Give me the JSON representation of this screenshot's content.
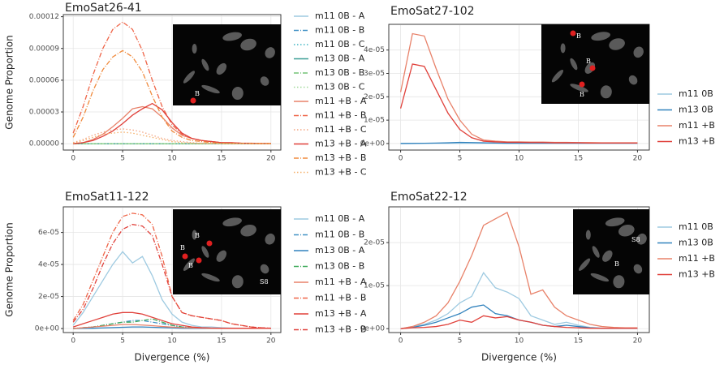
{
  "chart_data": [
    {
      "type": "line",
      "title": "EmoSat26-41",
      "y_label": "Genome Proportion",
      "x": [
        0,
        1,
        2,
        3,
        4,
        5,
        6,
        7,
        8,
        9,
        10,
        11,
        12,
        13,
        14,
        15,
        16,
        17,
        18,
        19,
        20
      ],
      "xlim": [
        -1,
        21
      ],
      "xticks": [
        0,
        5,
        10,
        15,
        20
      ],
      "ylim": [
        -6e-06,
        0.000122
      ],
      "yticks": [
        {
          "value": 0,
          "label": "0.00000"
        },
        {
          "value": 3e-05,
          "label": "0.00003"
        },
        {
          "value": 6e-05,
          "label": "0.00006"
        },
        {
          "value": 9e-05,
          "label": "0.00009"
        },
        {
          "value": 0.00012,
          "label": "0.00012"
        }
      ],
      "grid": true,
      "inset_labels": [
        "B"
      ],
      "series": [
        {
          "name": "m11 0B - A",
          "color": "#9ecae1",
          "dash": "solid",
          "values": [
            0,
            0,
            0,
            0,
            0,
            0,
            0,
            0,
            0,
            0,
            0,
            0,
            0,
            0,
            0,
            0,
            0,
            0,
            0,
            0,
            0
          ]
        },
        {
          "name": "m11 0B - B",
          "color": "#4292c6",
          "dash": "dashdot",
          "values": [
            0,
            0,
            0,
            0,
            0,
            0,
            0,
            0,
            0,
            0,
            0,
            0,
            0,
            0,
            0,
            0,
            0,
            0,
            0,
            0,
            0
          ]
        },
        {
          "name": "m11 0B - C",
          "color": "#41b6c4",
          "dash": "dotted",
          "values": [
            0,
            0,
            0,
            0,
            0,
            0,
            0,
            0,
            0,
            0,
            0,
            0,
            0,
            0,
            0,
            0,
            0,
            0,
            0,
            0,
            0
          ]
        },
        {
          "name": "m13 0B - A",
          "color": "#3a9e95",
          "dash": "solid",
          "values": [
            0,
            0,
            0,
            0,
            0,
            0,
            0,
            0,
            0,
            0,
            0,
            0,
            0,
            0,
            0,
            0,
            0,
            0,
            0,
            0,
            0
          ]
        },
        {
          "name": "m13 0B - B",
          "color": "#74c476",
          "dash": "dashdot",
          "values": [
            0,
            0,
            0,
            0,
            0,
            0,
            0,
            0,
            0,
            0,
            0,
            0,
            0,
            0,
            0,
            0,
            0,
            0,
            0,
            0,
            0
          ]
        },
        {
          "name": "m13 0B - C",
          "color": "#a1d99b",
          "dash": "dotted",
          "values": [
            0,
            0,
            0,
            0,
            0,
            0,
            0,
            0,
            0,
            0,
            0,
            0,
            0,
            0,
            0,
            0,
            0,
            0,
            0,
            0,
            0
          ]
        },
        {
          "name": "m11 +B - A",
          "color": "#e8826a",
          "dash": "solid",
          "values": [
            0,
            1e-06,
            4e-06,
            9e-06,
            1.6e-05,
            2.4e-05,
            3.3e-05,
            3.5e-05,
            3.3e-05,
            2.5e-05,
            1.5e-05,
            8e-06,
            5e-06,
            3e-06,
            2e-06,
            1e-06,
            1e-06,
            5e-07,
            5e-07,
            2e-07,
            2e-07
          ]
        },
        {
          "name": "m11 +B - B",
          "color": "#ef6548",
          "dash": "dashdot",
          "values": [
            1e-05,
            3.5e-05,
            6.5e-05,
            9e-05,
            0.000108,
            0.000115,
            0.000108,
            8.8e-05,
            6e-05,
            3.5e-05,
            1.8e-05,
            9e-06,
            5e-06,
            3e-06,
            2e-06,
            1e-06,
            5e-07,
            3e-07,
            2e-07,
            1e-07,
            1e-07
          ]
        },
        {
          "name": "m11 +B - C",
          "color": "#f4a582",
          "dash": "dotted",
          "values": [
            1e-06,
            4e-06,
            8e-06,
            1.1e-05,
            1.3e-05,
            1.4e-05,
            1.3e-05,
            1.1e-05,
            8e-06,
            5e-06,
            3e-06,
            2e-06,
            1e-06,
            5e-07,
            3e-07,
            2e-07,
            2e-07,
            2e-07,
            2e-07,
            2e-07,
            2e-07
          ]
        },
        {
          "name": "m13 +B - A",
          "color": "#e0403a",
          "dash": "solid",
          "values": [
            0,
            1e-06,
            3e-06,
            7e-06,
            1.2e-05,
            1.9e-05,
            2.7e-05,
            3.3e-05,
            3.8e-05,
            3.2e-05,
            2e-05,
            1e-05,
            5e-06,
            3e-06,
            2e-06,
            1e-06,
            1e-06,
            5e-07,
            3e-07,
            2e-07,
            2e-07
          ]
        },
        {
          "name": "m13 +B - B",
          "color": "#f08a3c",
          "dash": "dashdot",
          "values": [
            6e-06,
            2.5e-05,
            5e-05,
            7e-05,
            8.2e-05,
            8.8e-05,
            8.2e-05,
            6.8e-05,
            4.5e-05,
            2.5e-05,
            1.2e-05,
            6e-06,
            3e-06,
            2e-06,
            1e-06,
            5e-07,
            3e-07,
            2e-07,
            1e-07,
            1e-07,
            1e-07
          ]
        },
        {
          "name": "m13 +B - C",
          "color": "#f5b06a",
          "dash": "dotted",
          "values": [
            5e-07,
            3e-06,
            6e-06,
            9e-06,
            1e-05,
            1.1e-05,
            1e-05,
            8e-06,
            6e-06,
            4e-06,
            2e-06,
            1e-06,
            5e-07,
            3e-07,
            2e-07,
            1e-07,
            1e-07,
            1e-07,
            1e-07,
            1e-07,
            1e-07
          ]
        }
      ]
    },
    {
      "type": "line",
      "title": "EmoSat27-102",
      "x": [
        0,
        1,
        2,
        3,
        4,
        5,
        6,
        7,
        8,
        9,
        10,
        11,
        12,
        13,
        14,
        15,
        16,
        17,
        18,
        19,
        20
      ],
      "xlim": [
        -1,
        21
      ],
      "xticks": [
        0,
        5,
        10,
        15,
        20
      ],
      "ylim": [
        -2.8e-06,
        5.1e-05
      ],
      "yticks": [
        {
          "value": 0,
          "label": "0e+00"
        },
        {
          "value": 1e-05,
          "label": "1e-05"
        },
        {
          "value": 2e-05,
          "label": "2e-05"
        },
        {
          "value": 3e-05,
          "label": "3e-05"
        },
        {
          "value": 4e-05,
          "label": "4e-05"
        }
      ],
      "grid": true,
      "inset_labels": [
        "B",
        "B",
        "B"
      ],
      "series": [
        {
          "name": "m11 0B",
          "color": "#9ecae1",
          "dash": "solid",
          "values": [
            1e-07,
            1e-07,
            1e-07,
            1e-07,
            1e-07,
            1e-07,
            1e-07,
            1e-07,
            1e-07,
            1e-07,
            1e-07,
            1e-07,
            1e-07,
            1e-07,
            1e-07,
            1e-07,
            1e-07,
            1e-07,
            1e-07,
            1e-07,
            1e-07
          ]
        },
        {
          "name": "m13 0B",
          "color": "#3182bd",
          "dash": "solid",
          "values": [
            0,
            5e-08,
            1e-07,
            2e-07,
            3e-07,
            5e-07,
            4e-07,
            3e-07,
            2e-07,
            1e-07,
            1e-07,
            1e-07,
            1e-07,
            1e-07,
            1e-07,
            1e-07,
            1e-07,
            1e-07,
            1e-07,
            1e-07,
            1e-07
          ]
        },
        {
          "name": "m11 +B",
          "color": "#e8826a",
          "dash": "solid",
          "values": [
            2.2e-05,
            4.7e-05,
            4.6e-05,
            3.2e-05,
            1.9e-05,
            1e-05,
            4e-06,
            1.5e-06,
            1e-06,
            7e-07,
            7e-07,
            6e-07,
            6e-07,
            5e-07,
            5e-07,
            4e-07,
            4e-07,
            3e-07,
            3e-07,
            3e-07,
            3e-07
          ]
        },
        {
          "name": "m13 +B",
          "color": "#e0403a",
          "dash": "solid",
          "values": [
            1.5e-05,
            3.4e-05,
            3.3e-05,
            2.3e-05,
            1.3e-05,
            6e-06,
            2.5e-06,
            1e-06,
            7e-07,
            5e-07,
            5e-07,
            4e-07,
            4e-07,
            3e-07,
            3e-07,
            3e-07,
            2e-07,
            2e-07,
            2e-07,
            2e-07,
            2e-07
          ]
        }
      ]
    },
    {
      "type": "line",
      "title": "EmoSat11-122",
      "y_label": "Genome Proportion",
      "x_label": "Divergence (%)",
      "x": [
        0,
        1,
        2,
        3,
        4,
        5,
        6,
        7,
        8,
        9,
        10,
        11,
        12,
        13,
        14,
        15,
        16,
        17,
        18,
        19,
        20
      ],
      "xlim": [
        -1,
        21
      ],
      "xticks": [
        0,
        5,
        10,
        15,
        20
      ],
      "ylim": [
        -2.5e-06,
        7.6e-05
      ],
      "yticks": [
        {
          "value": 0,
          "label": "0e+00"
        },
        {
          "value": 2e-05,
          "label": "2e-05"
        },
        {
          "value": 4e-05,
          "label": "4e-05"
        },
        {
          "value": 6e-05,
          "label": "6e-05"
        }
      ],
      "grid": true,
      "inset_labels": [
        "B",
        "B",
        "B",
        "S8"
      ],
      "series": [
        {
          "name": "m11 0B - A",
          "color": "#9ecae1",
          "dash": "solid",
          "values": [
            2e-06,
            1e-05,
            2e-05,
            3e-05,
            4e-05,
            4.8e-05,
            4.1e-05,
            4.5e-05,
            3.3e-05,
            1.8e-05,
            9e-06,
            4e-06,
            2e-06,
            1e-06,
            1e-06,
            5e-07,
            3e-07,
            2e-07,
            1e-07,
            1e-07,
            1e-07
          ]
        },
        {
          "name": "m11 0B - B",
          "color": "#4292c6",
          "dash": "dashdot",
          "values": [
            0,
            5e-07,
            1e-06,
            2e-06,
            3e-06,
            4e-06,
            5e-06,
            5e-06,
            4e-06,
            3e-06,
            2e-06,
            1e-06,
            5e-07,
            3e-07,
            2e-07,
            1e-07,
            1e-07,
            1e-07,
            1e-07,
            1e-07,
            1e-07
          ]
        },
        {
          "name": "m13 0B - A",
          "color": "#3182bd",
          "dash": "solid",
          "values": [
            0,
            1e-07,
            2e-07,
            4e-07,
            6e-07,
            8e-07,
            1e-06,
            1e-06,
            8e-07,
            6e-07,
            4e-07,
            2e-07,
            1e-07,
            1e-07,
            1e-07,
            1e-07,
            1e-07,
            1e-07,
            1e-07,
            1e-07,
            1e-07
          ]
        },
        {
          "name": "m13 0B - B",
          "color": "#41ab5d",
          "dash": "dashdot",
          "values": [
            0,
            5e-07,
            1e-06,
            2e-06,
            3e-06,
            4e-06,
            4e-06,
            5e-06,
            6e-06,
            4e-06,
            2e-06,
            1e-06,
            5e-07,
            3e-07,
            2e-07,
            1e-07,
            1e-07,
            1e-07,
            1e-07,
            1e-07,
            1e-07
          ]
        },
        {
          "name": "m11 +B - A",
          "color": "#e8826a",
          "dash": "solid",
          "values": [
            0,
            5e-07,
            1e-06,
            1.5e-06,
            2e-06,
            2.5e-06,
            2.5e-06,
            2.2e-06,
            1.8e-06,
            1.3e-06,
            9e-07,
            6e-07,
            4e-07,
            3e-07,
            2e-07,
            2e-07,
            1e-07,
            1e-07,
            1e-07,
            1e-07,
            1e-07
          ]
        },
        {
          "name": "m11 +B - B",
          "color": "#ef6548",
          "dash": "dashdot",
          "values": [
            5e-06,
            1.5e-05,
            3e-05,
            4.5e-05,
            6e-05,
            7e-05,
            7.2e-05,
            7.1e-05,
            6.5e-05,
            4.5e-05,
            2e-05,
            1e-05,
            8e-06,
            7e-06,
            6e-06,
            5e-06,
            3e-06,
            2e-06,
            1e-06,
            5e-07,
            2e-07
          ]
        },
        {
          "name": "m13 +B - A",
          "color": "#e0403a",
          "dash": "solid",
          "values": [
            1e-06,
            3e-06,
            5e-06,
            7e-06,
            9e-06,
            1e-05,
            1e-05,
            9e-06,
            7e-06,
            5e-06,
            3e-06,
            2e-06,
            1e-06,
            5e-07,
            3e-07,
            2e-07,
            2e-07,
            2e-07,
            2e-07,
            2e-07,
            2e-07
          ]
        },
        {
          "name": "m13 +B - B",
          "color": "#e0403a",
          "dash": "dashdot",
          "values": [
            4e-06,
            1.2e-05,
            2.5e-05,
            4e-05,
            5.3e-05,
            6.2e-05,
            6.5e-05,
            6.4e-05,
            5.8e-05,
            4e-05,
            2e-05,
            1e-05,
            8e-06,
            7e-06,
            6e-06,
            5e-06,
            3e-06,
            2e-06,
            1e-06,
            5e-07,
            2e-07
          ]
        }
      ]
    },
    {
      "type": "line",
      "title": "EmoSat22-12",
      "x_label": "Divergence (%)",
      "x": [
        0,
        1,
        2,
        3,
        4,
        5,
        6,
        7,
        8,
        9,
        10,
        11,
        12,
        13,
        14,
        15,
        16,
        17,
        18,
        19,
        20
      ],
      "xlim": [
        -1,
        21
      ],
      "xticks": [
        0,
        5,
        10,
        15,
        20
      ],
      "ylim": [
        -9e-07,
        2.83e-05
      ],
      "yticks": [
        {
          "value": 0,
          "label": "0e+00"
        },
        {
          "value": 1e-05,
          "label": "1e-05"
        },
        {
          "value": 2e-05,
          "label": "2e-05"
        }
      ],
      "grid": true,
      "inset_labels": [
        "S8",
        "B"
      ],
      "series": [
        {
          "name": "m11 0B",
          "color": "#9ecae1",
          "dash": "solid",
          "values": [
            0,
            5e-07,
            1e-06,
            2e-06,
            3.5e-06,
            6e-06,
            7.5e-06,
            1.3e-05,
            9.5e-06,
            8.5e-06,
            7e-06,
            3e-06,
            2e-06,
            1e-06,
            1.5e-06,
            8e-07,
            3e-07,
            1e-07,
            1e-07,
            1e-07,
            1e-07
          ]
        },
        {
          "name": "m13 0B",
          "color": "#3182bd",
          "dash": "solid",
          "values": [
            0,
            3e-07,
            8e-07,
            1.5e-06,
            2.5e-06,
            3.5e-06,
            5e-06,
            5.5e-06,
            3.5e-06,
            3e-06,
            2e-06,
            1.5e-06,
            8e-07,
            5e-07,
            8e-07,
            5e-07,
            2e-07,
            1e-07,
            1e-07,
            1e-07,
            1e-07
          ]
        },
        {
          "name": "m11 +B",
          "color": "#e8826a",
          "dash": "solid",
          "values": [
            0,
            5e-07,
            1.5e-06,
            3e-06,
            6e-06,
            1.1e-05,
            1.7e-05,
            2.4e-05,
            2.55e-05,
            2.7e-05,
            1.9e-05,
            8e-06,
            9e-06,
            5e-06,
            3e-06,
            2e-06,
            1e-06,
            5e-07,
            3e-07,
            2e-07,
            2e-07
          ]
        },
        {
          "name": "m13 +B",
          "color": "#e0403a",
          "dash": "solid",
          "values": [
            0,
            2e-07,
            3e-07,
            5e-07,
            1e-06,
            2e-06,
            1.5e-06,
            3e-06,
            2.5e-06,
            2.8e-06,
            2e-06,
            1.5e-06,
            8e-07,
            5e-07,
            3e-07,
            2e-07,
            1e-07,
            1e-07,
            1e-07,
            1e-07,
            1e-07
          ]
        }
      ]
    }
  ]
}
